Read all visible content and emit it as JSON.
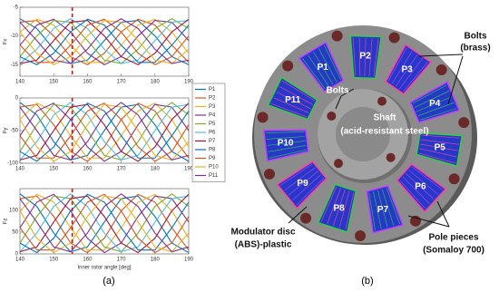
{
  "panels": {
    "a": "(a)",
    "b": "(b)"
  },
  "chart_data": [
    {
      "type": "line",
      "ylabel": "Fx",
      "x": [
        140,
        145,
        150,
        155,
        160,
        165,
        170,
        175,
        180,
        185,
        190
      ],
      "xlim": [
        140,
        190
      ],
      "xticks": [
        140,
        150,
        160,
        170,
        180,
        190
      ],
      "ylim": [
        -17,
        -5
      ],
      "yticks": [
        -15,
        -10,
        -5
      ],
      "vline": {
        "x": 155.5,
        "color": "#e01010"
      },
      "series": [
        {
          "color": "#0072bd",
          "values": [
            -7,
            -8.7,
            -12.3,
            -14.8,
            -14.2,
            -10.8,
            -7.6,
            -7.3,
            -10,
            -13.6,
            -15
          ]
        },
        {
          "color": "#d95319",
          "values": [
            -7.6,
            -7.3,
            -10,
            -13.6,
            -15,
            -13,
            -9.3,
            -7.1,
            -8.1,
            -11.6,
            -14.6
          ]
        },
        {
          "color": "#edb120",
          "values": [
            -9.3,
            -7.1,
            -8.1,
            -11.6,
            -14.6,
            -14.6,
            -11.6,
            -8.1,
            -7.1,
            -9.3,
            -13
          ]
        },
        {
          "color": "#7e2f8e",
          "values": [
            -11.6,
            -8.1,
            -7.1,
            -9.3,
            -13,
            -15,
            -13.6,
            -10,
            -7.3,
            -7.6,
            -10.8
          ]
        },
        {
          "color": "#77ac30",
          "values": [
            -13.6,
            -10,
            -7.3,
            -7.6,
            -10.8,
            -14.2,
            -14.8,
            -12.3,
            -8.7,
            -7,
            -8.7
          ]
        },
        {
          "color": "#4dbeee",
          "values": [
            -14.8,
            -12.3,
            -8.7,
            -7,
            -8.7,
            -12.3,
            -14.8,
            -14.2,
            -10.8,
            -7.6,
            -7.3
          ]
        },
        {
          "color": "#a2142f",
          "values": [
            -14.8,
            -14.2,
            -10.8,
            -7.6,
            -7.3,
            -10,
            -13.6,
            -15,
            -13,
            -9.3,
            -7.1
          ]
        },
        {
          "color": "#0072bd",
          "values": [
            -13.6,
            -15,
            -13,
            -9.3,
            -7.1,
            -8.1,
            -11.6,
            -14.6,
            -14.6,
            -11.6,
            -8.1
          ]
        },
        {
          "color": "#d95319",
          "values": [
            -11.6,
            -14.6,
            -14.6,
            -11.6,
            -8.1,
            -7.1,
            -9.3,
            -13,
            -15,
            -13.6,
            -10
          ]
        },
        {
          "color": "#edb120",
          "values": [
            -9.3,
            -13,
            -15,
            -13.6,
            -10,
            -7.3,
            -7.6,
            -10.8,
            -14.2,
            -14.8,
            -12.3
          ]
        },
        {
          "color": "#7e2f8e",
          "values": [
            -7.6,
            -10.8,
            -14.2,
            -14.8,
            -12.3,
            -8.7,
            -7,
            -8.7,
            -12.3,
            -14.8,
            -14.2
          ]
        }
      ]
    },
    {
      "type": "line",
      "ylabel": "Fy",
      "x": [
        140,
        145,
        150,
        155,
        160,
        165,
        170,
        175,
        180,
        185,
        190
      ],
      "xlim": [
        140,
        190
      ],
      "xticks": [
        140,
        150,
        160,
        170,
        180,
        190
      ],
      "ylim": [
        -100,
        0
      ],
      "yticks": [
        -100,
        -50,
        0
      ],
      "vline": {
        "x": 155.5,
        "color": "#e01010"
      },
      "legend": true,
      "series": [
        {
          "name": "P1",
          "color": "#0072bd",
          "values": [
            -7,
            -26,
            -67,
            -95,
            -88,
            -50,
            -14,
            -10,
            -41,
            -82,
            -97
          ]
        },
        {
          "name": "P2",
          "color": "#d95319",
          "values": [
            -14,
            -10,
            -41,
            -82,
            -97,
            -75,
            -33,
            -8,
            -20,
            -58,
            -92
          ]
        },
        {
          "name": "P3",
          "color": "#edb120",
          "values": [
            -33,
            -8,
            -20,
            -58,
            -92,
            -92,
            -58,
            -20,
            -8,
            -33,
            -75
          ]
        },
        {
          "name": "P4",
          "color": "#7e2f8e",
          "values": [
            -58,
            -20,
            -8,
            -33,
            -75,
            -97,
            -82,
            -41,
            -10,
            -14,
            -50
          ]
        },
        {
          "name": "P5",
          "color": "#77ac30",
          "values": [
            -82,
            -41,
            -10,
            -14,
            -50,
            -88,
            -95,
            -67,
            -26,
            -7,
            -26
          ]
        },
        {
          "name": "P6",
          "color": "#4dbeee",
          "values": [
            -95,
            -67,
            -26,
            -7,
            -26,
            -67,
            -95,
            -88,
            -50,
            -14,
            -10
          ]
        },
        {
          "name": "P7",
          "color": "#a2142f",
          "values": [
            -95,
            -88,
            -50,
            -14,
            -10,
            -41,
            -82,
            -97,
            -75,
            -33,
            -8
          ]
        },
        {
          "name": "P8",
          "color": "#0072bd",
          "values": [
            -82,
            -97,
            -75,
            -33,
            -8,
            -20,
            -58,
            -92,
            -92,
            -58,
            -20
          ]
        },
        {
          "name": "P9",
          "color": "#d95319",
          "values": [
            -58,
            -92,
            -92,
            -58,
            -20,
            -8,
            -33,
            -75,
            -97,
            -82,
            -41
          ]
        },
        {
          "name": "P10",
          "color": "#edb120",
          "values": [
            -33,
            -75,
            -97,
            -82,
            -41,
            -10,
            -14,
            -50,
            -88,
            -95,
            -67
          ]
        },
        {
          "name": "P11",
          "color": "#7e2f8e",
          "values": [
            -14,
            -50,
            -88,
            -95,
            -67,
            -26,
            -7,
            -26,
            -67,
            -95,
            -88
          ]
        }
      ]
    },
    {
      "type": "line",
      "ylabel": "Fz",
      "xlabel": "Inner rotor angle [deg]",
      "x": [
        140,
        145,
        150,
        155,
        160,
        165,
        170,
        175,
        180,
        185,
        190
      ],
      "xlim": [
        140,
        190
      ],
      "xticks": [
        140,
        150,
        160,
        170,
        180,
        190
      ],
      "ylim": [
        0,
        150
      ],
      "yticks": [
        0,
        50,
        100
      ],
      "vline": {
        "x": 155.5,
        "color": "#e01010"
      },
      "series": [
        {
          "color": "#0072bd",
          "values": [
            138,
            109,
            48,
            5,
            16,
            73,
            127,
            133,
            86,
            25,
            3
          ]
        },
        {
          "color": "#d95319",
          "values": [
            127,
            133,
            86,
            25,
            3,
            36,
            99,
            137,
            119,
            60,
            9
          ]
        },
        {
          "color": "#edb120",
          "values": [
            99,
            137,
            119,
            60,
            9,
            9,
            60,
            119,
            137,
            99,
            36
          ]
        },
        {
          "color": "#7e2f8e",
          "values": [
            60,
            119,
            137,
            99,
            36,
            3,
            25,
            86,
            133,
            127,
            73
          ]
        },
        {
          "color": "#77ac30",
          "values": [
            25,
            86,
            133,
            127,
            73,
            16,
            5,
            48,
            109,
            138,
            109
          ]
        },
        {
          "color": "#4dbeee",
          "values": [
            5,
            48,
            109,
            138,
            109,
            48,
            5,
            16,
            73,
            127,
            133
          ]
        },
        {
          "color": "#a2142f",
          "values": [
            5,
            16,
            73,
            127,
            133,
            86,
            25,
            3,
            36,
            99,
            137
          ]
        },
        {
          "color": "#0072bd",
          "values": [
            25,
            3,
            36,
            99,
            137,
            119,
            60,
            9,
            9,
            60,
            119
          ]
        },
        {
          "color": "#d95319",
          "values": [
            60,
            9,
            9,
            60,
            119,
            137,
            99,
            36,
            3,
            25,
            86
          ]
        },
        {
          "color": "#edb120",
          "values": [
            99,
            36,
            3,
            25,
            86,
            133,
            127,
            73,
            16,
            5,
            48
          ]
        },
        {
          "color": "#7e2f8e",
          "values": [
            127,
            73,
            16,
            5,
            48,
            109,
            138,
            109,
            48,
            5,
            16
          ]
        }
      ]
    }
  ],
  "diagram": {
    "poles": [
      "P1",
      "P2",
      "P3",
      "P4",
      "P5",
      "P6",
      "P7",
      "P8",
      "P9",
      "P10",
      "P11"
    ],
    "bolts_outer": [
      "Bolts",
      "(brass)"
    ],
    "bolts_inner": "Bolts",
    "shaft": [
      "Shaft",
      "(acid-resistant steel)"
    ],
    "disc": [
      "Modulator disc",
      "(ABS)-plastic"
    ],
    "pole_pieces": [
      "Pole pieces",
      "(Somaloy 700)"
    ]
  }
}
